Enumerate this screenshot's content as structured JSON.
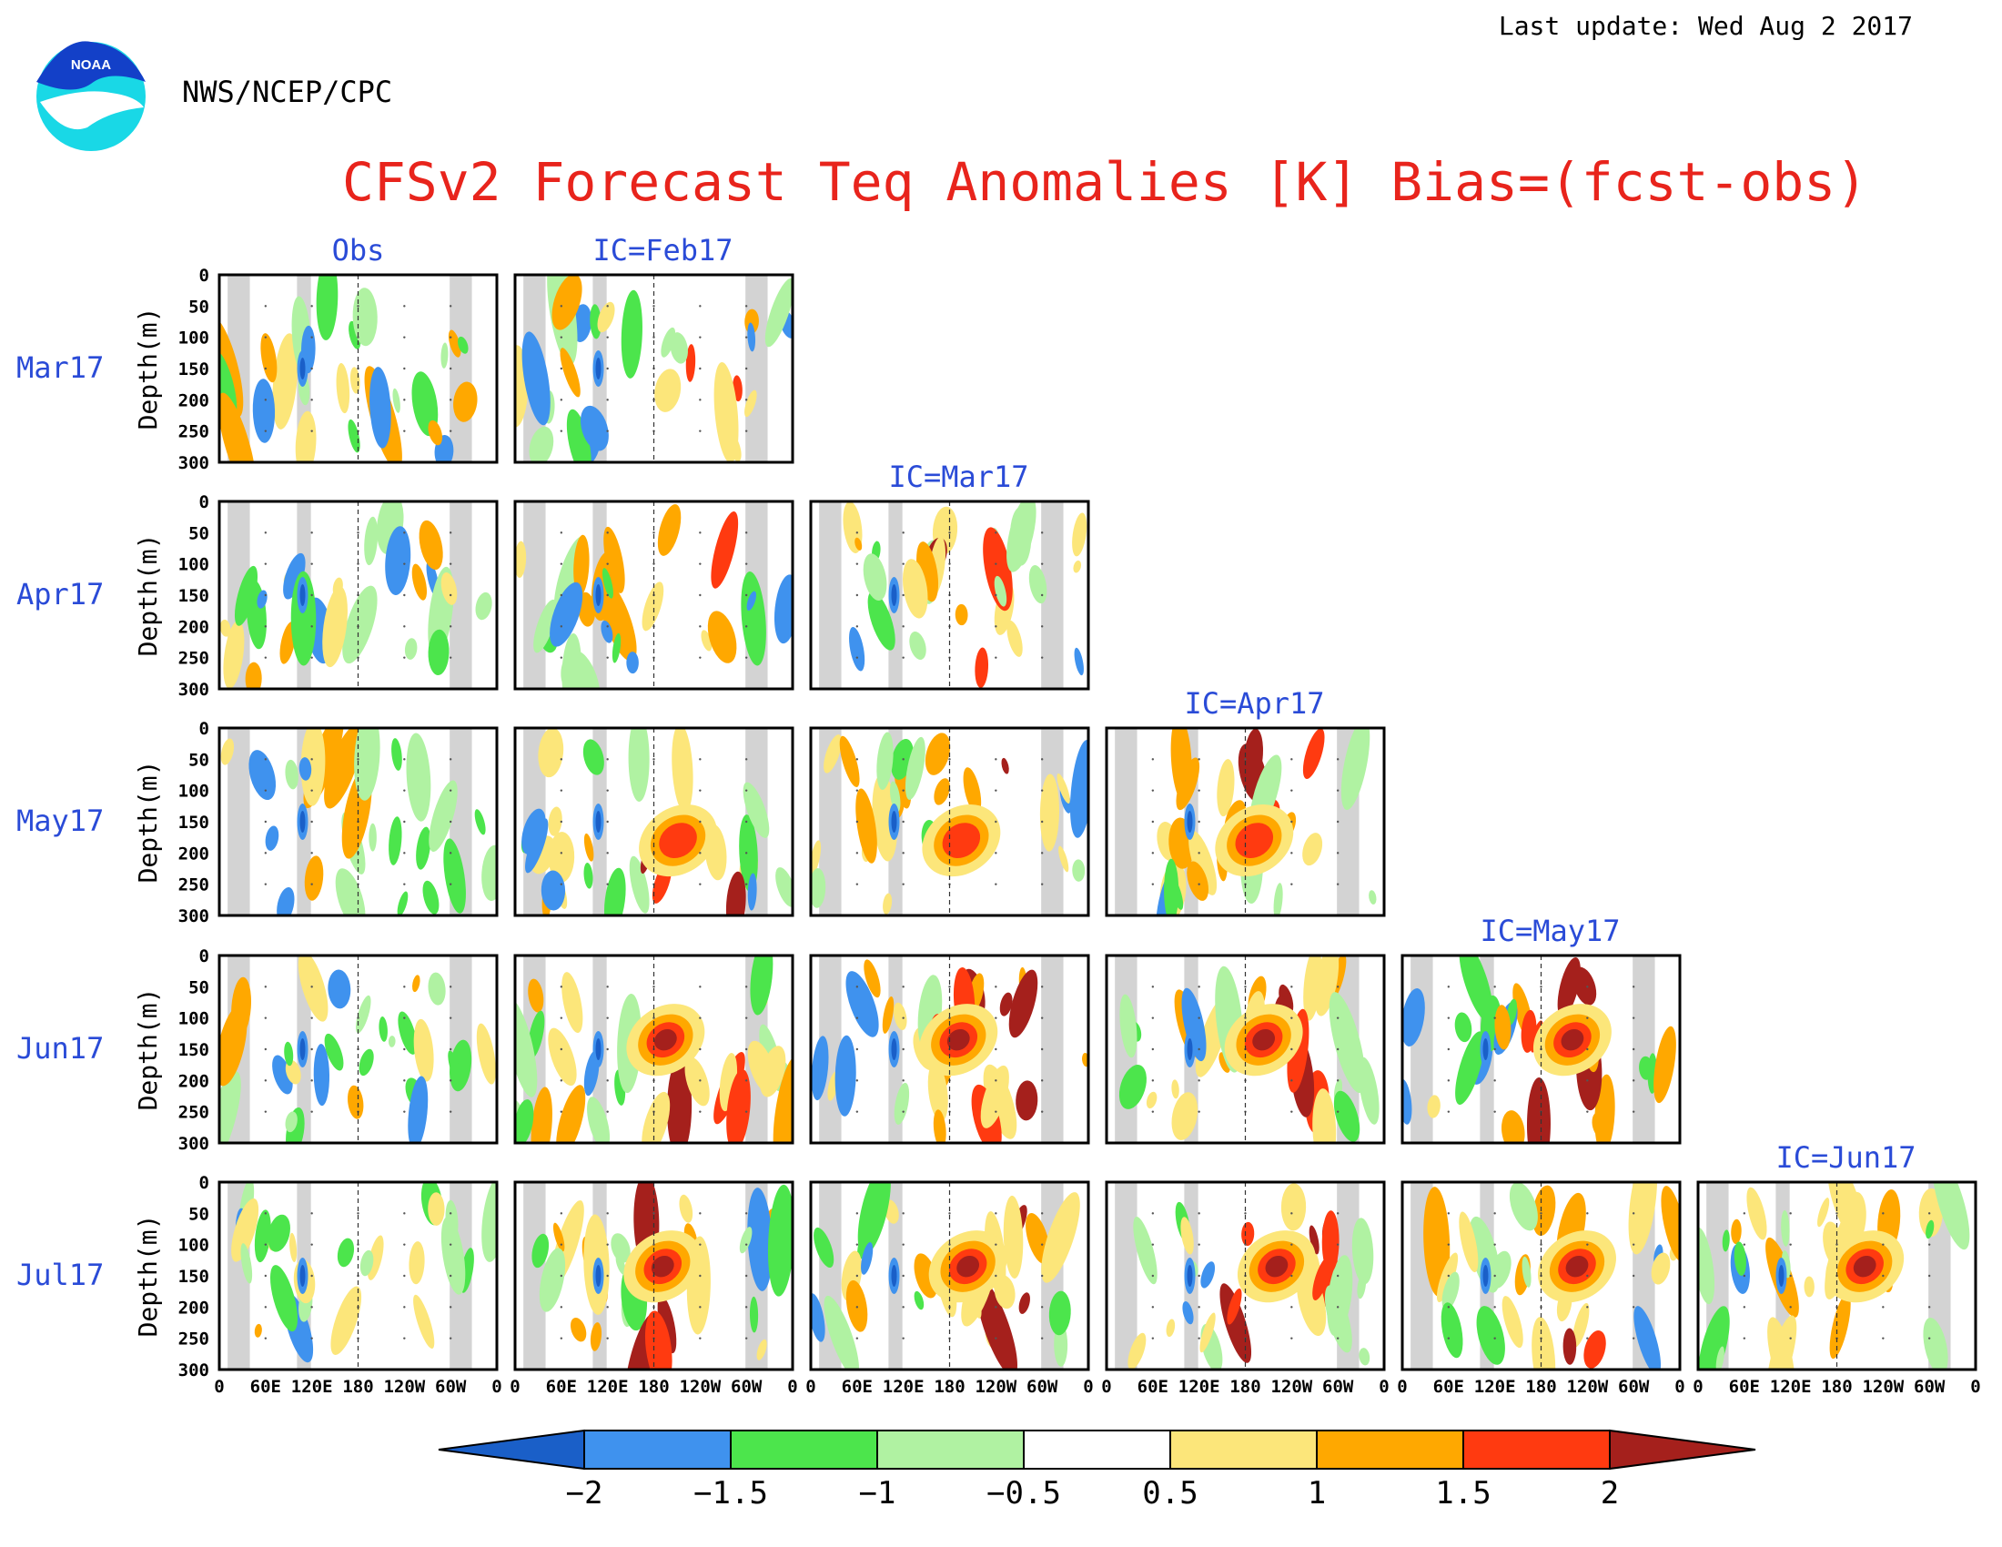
{
  "header": {
    "last_update": "Last update: Wed Aug 2 2017",
    "agency": "NWS/NCEP/CPC",
    "logo_text": "NOAA",
    "title": "CFSv2 Forecast Teq Anomalies [K] Bias=(fcst-obs)"
  },
  "chart_data": {
    "type": "heatmap",
    "title": "CFSv2 Forecast Teq Anomalies [K] Bias=(fcst-obs)",
    "ylabel": "Depth(m)",
    "ylim": [
      300,
      0
    ],
    "y_ticks": [
      "0",
      "50",
      "100",
      "150",
      "200",
      "250",
      "300"
    ],
    "x_ticks": [
      "0",
      "60E",
      "120E",
      "180",
      "120W",
      "60W",
      "0"
    ],
    "columns": [
      "Obs",
      "IC=Feb17",
      "IC=Mar17",
      "IC=Apr17",
      "IC=May17",
      "IC=Jun17"
    ],
    "rows": [
      "Mar17",
      "Apr17",
      "May17",
      "Jun17",
      "Jul17"
    ],
    "colorbar": {
      "ticks": [
        "−2",
        "−1.5",
        "−1",
        "−0.5",
        "0.5",
        "1",
        "1.5",
        "2"
      ],
      "colors": [
        "#1a5fc8",
        "#3f92ee",
        "#4ce54c",
        "#b0f2a2",
        "#ffffff",
        "#fce67a",
        "#ffa800",
        "#ff3a10",
        "#a5201c"
      ]
    },
    "panel_features": {
      "shading_color": "#d3d3d3",
      "dateline": "180"
    }
  }
}
